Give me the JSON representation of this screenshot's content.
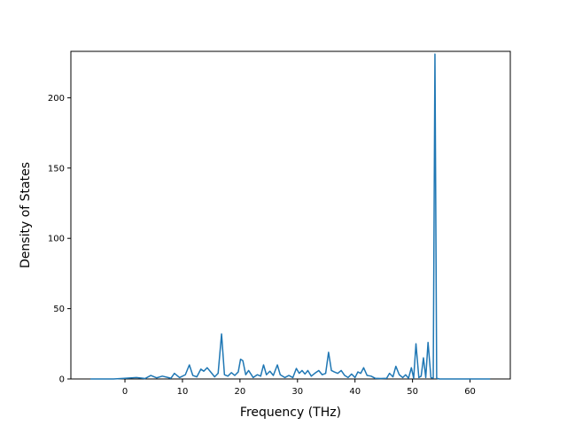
{
  "chart_data": {
    "type": "line",
    "xlabel": "Frequency (THz)",
    "ylabel": "Density of States",
    "xlim": [
      -9.4,
      67.0
    ],
    "ylim": [
      0,
      233
    ],
    "grid": false,
    "xticks": [
      "0",
      "10",
      "20",
      "30",
      "40",
      "50",
      "60"
    ],
    "yticks": [
      "0",
      "50",
      "100",
      "150",
      "200"
    ],
    "line_color": "#1f77b4",
    "series": [
      {
        "x": [
          -6,
          -2,
          0,
          2,
          3.5,
          4.5,
          5.5,
          6.5,
          7.5,
          8,
          8.6,
          9.5,
          10.5,
          11.2,
          11.8,
          12.5,
          13.2,
          13.7,
          14.3,
          15,
          15.6,
          16.2,
          16.8,
          17.3,
          17.9,
          18.5,
          19.1,
          19.7,
          20.1,
          20.5,
          21,
          21.5,
          22.3,
          23,
          23.6,
          24.1,
          24.6,
          25.2,
          25.8,
          26.5,
          27,
          27.8,
          28.5,
          29.2,
          29.8,
          30.3,
          30.8,
          31.3,
          31.8,
          32.4,
          33,
          33.7,
          34.3,
          34.9,
          35.4,
          35.9,
          36.4,
          37,
          37.6,
          38.2,
          38.8,
          39.4,
          40,
          40.5,
          41,
          41.5,
          42.1,
          42.8,
          43.5,
          44.5,
          45.5,
          46,
          46.6,
          47.1,
          47.7,
          48.3,
          48.8,
          49.3,
          49.8,
          50.2,
          50.6,
          51.1,
          51.5,
          51.9,
          52.3,
          52.7,
          53.2,
          53.6,
          53.9,
          54.2,
          54.7,
          55.5,
          60,
          63.5
        ],
        "y": [
          0,
          0,
          0.5,
          1,
          0.3,
          2.5,
          0.8,
          2,
          1,
          0.5,
          4,
          1,
          3,
          10,
          2.5,
          1.5,
          7,
          5.5,
          8,
          4.5,
          1.5,
          4,
          32,
          3,
          2,
          4.5,
          2.5,
          5,
          14,
          13,
          3,
          6,
          1,
          3,
          2,
          10,
          3,
          5.5,
          2.5,
          10,
          3,
          1,
          2.5,
          1,
          7.5,
          4,
          6,
          3.5,
          6,
          2,
          4,
          6,
          3,
          4,
          19,
          6,
          5,
          4,
          6,
          2.5,
          1,
          3.5,
          1,
          5,
          4,
          8,
          2.5,
          2,
          0.5,
          0.3,
          0.5,
          4,
          1.5,
          9,
          3,
          1,
          3,
          0.5,
          8,
          0.5,
          25,
          1,
          2,
          15,
          1,
          26,
          1,
          0.5,
          231,
          0.5,
          0,
          0,
          0,
          0
        ]
      }
    ]
  }
}
